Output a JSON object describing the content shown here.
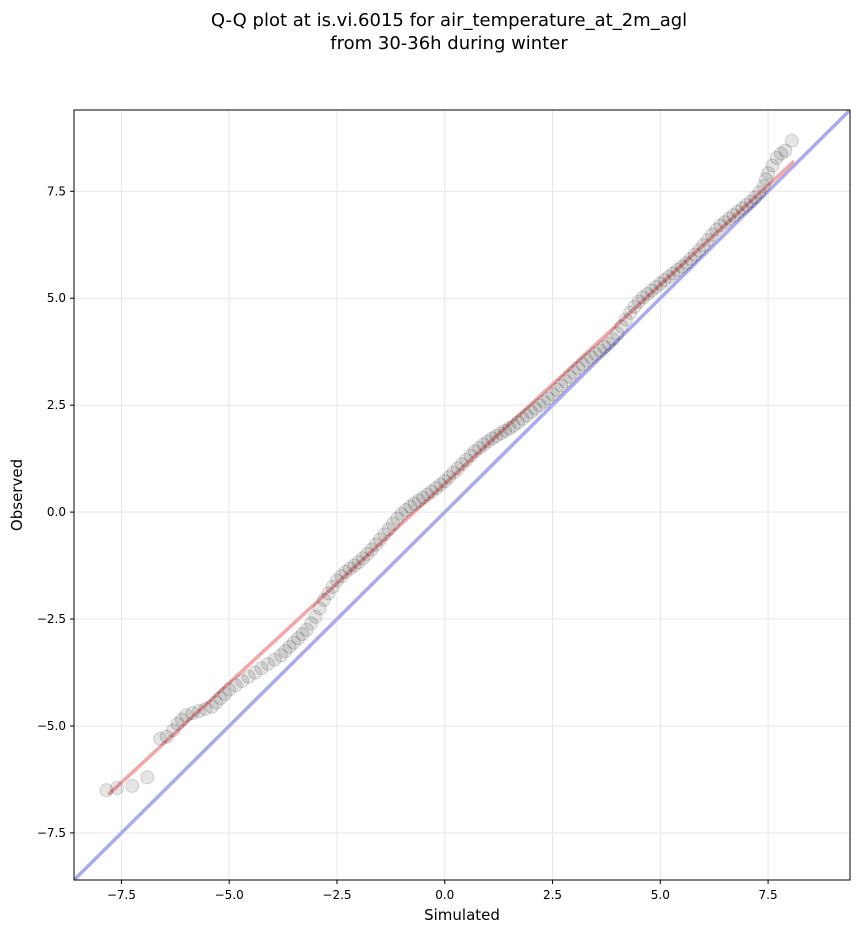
{
  "chart_data": {
    "type": "scatter",
    "title_lines": [
      "Q-Q plot at is.vi.6015 for air_temperature_at_2m_agl",
      "from 30-36h during winter"
    ],
    "xlabel": "Simulated",
    "ylabel": "Observed",
    "xlim": [
      -8.6,
      9.4
    ],
    "ylim": [
      -8.6,
      9.4
    ],
    "xticks": [
      -7.5,
      -5.0,
      -2.5,
      0.0,
      2.5,
      5.0,
      7.5
    ],
    "yticks": [
      -7.5,
      -5.0,
      -2.5,
      0.0,
      2.5,
      5.0,
      7.5
    ],
    "xtick_labels": [
      "−7.5",
      "−5.0",
      "−2.5",
      "0.0",
      "2.5",
      "5.0",
      "7.5"
    ],
    "ytick_labels": [
      "−7.5",
      "−5.0",
      "−2.5",
      "0.0",
      "2.5",
      "5.0",
      "7.5"
    ],
    "grid": true,
    "reference_line": {
      "points": [
        [
          -8.6,
          -8.6
        ],
        [
          9.4,
          9.4
        ]
      ],
      "color": "#aaaaee"
    },
    "fit_line": {
      "points": [
        [
          -7.8,
          -6.6
        ],
        [
          8.1,
          8.2
        ]
      ],
      "color": "#f4a6a6"
    },
    "points": [
      [
        -7.85,
        -6.5
      ],
      [
        -7.6,
        -6.45
      ],
      [
        -7.25,
        -6.4
      ],
      [
        -6.9,
        -6.2
      ],
      [
        -6.6,
        -5.3
      ],
      [
        -6.45,
        -5.25
      ],
      [
        -6.3,
        -5.1
      ],
      [
        -6.2,
        -4.95
      ],
      [
        -6.1,
        -4.85
      ],
      [
        -6.0,
        -4.75
      ],
      [
        -5.85,
        -4.7
      ],
      [
        -5.7,
        -4.65
      ],
      [
        -5.55,
        -4.6
      ],
      [
        -5.4,
        -4.55
      ],
      [
        -5.3,
        -4.45
      ],
      [
        -5.2,
        -4.35
      ],
      [
        -5.1,
        -4.25
      ],
      [
        -5.0,
        -4.15
      ],
      [
        -4.85,
        -4.05
      ],
      [
        -4.7,
        -3.95
      ],
      [
        -4.55,
        -3.85
      ],
      [
        -4.4,
        -3.75
      ],
      [
        -4.25,
        -3.65
      ],
      [
        -4.1,
        -3.55
      ],
      [
        -3.95,
        -3.45
      ],
      [
        -3.8,
        -3.35
      ],
      [
        -3.7,
        -3.25
      ],
      [
        -3.6,
        -3.15
      ],
      [
        -3.5,
        -3.05
      ],
      [
        -3.4,
        -2.95
      ],
      [
        -3.3,
        -2.85
      ],
      [
        -3.2,
        -2.75
      ],
      [
        -3.1,
        -2.6
      ],
      [
        -3.0,
        -2.45
      ],
      [
        -2.9,
        -2.25
      ],
      [
        -2.8,
        -2.05
      ],
      [
        -2.7,
        -1.9
      ],
      [
        -2.6,
        -1.75
      ],
      [
        -2.5,
        -1.6
      ],
      [
        -2.4,
        -1.5
      ],
      [
        -2.3,
        -1.4
      ],
      [
        -2.2,
        -1.32
      ],
      [
        -2.1,
        -1.25
      ],
      [
        -2.0,
        -1.17
      ],
      [
        -1.9,
        -1.08
      ],
      [
        -1.8,
        -0.98
      ],
      [
        -1.7,
        -0.88
      ],
      [
        -1.6,
        -0.76
      ],
      [
        -1.5,
        -0.64
      ],
      [
        -1.4,
        -0.52
      ],
      [
        -1.3,
        -0.4
      ],
      [
        -1.2,
        -0.27
      ],
      [
        -1.1,
        -0.15
      ],
      [
        -1.0,
        -0.04
      ],
      [
        -0.9,
        0.05
      ],
      [
        -0.8,
        0.13
      ],
      [
        -0.7,
        0.2
      ],
      [
        -0.6,
        0.27
      ],
      [
        -0.5,
        0.34
      ],
      [
        -0.4,
        0.41
      ],
      [
        -0.3,
        0.48
      ],
      [
        -0.2,
        0.56
      ],
      [
        -0.1,
        0.64
      ],
      [
        0.0,
        0.72
      ],
      [
        0.1,
        0.82
      ],
      [
        0.2,
        0.92
      ],
      [
        0.3,
        1.02
      ],
      [
        0.4,
        1.12
      ],
      [
        0.5,
        1.22
      ],
      [
        0.6,
        1.32
      ],
      [
        0.7,
        1.42
      ],
      [
        0.8,
        1.5
      ],
      [
        0.9,
        1.58
      ],
      [
        1.0,
        1.65
      ],
      [
        1.1,
        1.72
      ],
      [
        1.2,
        1.78
      ],
      [
        1.3,
        1.84
      ],
      [
        1.4,
        1.9
      ],
      [
        1.5,
        1.96
      ],
      [
        1.6,
        2.02
      ],
      [
        1.7,
        2.1
      ],
      [
        1.8,
        2.18
      ],
      [
        1.9,
        2.26
      ],
      [
        2.0,
        2.34
      ],
      [
        2.1,
        2.42
      ],
      [
        2.2,
        2.5
      ],
      [
        2.3,
        2.58
      ],
      [
        2.4,
        2.66
      ],
      [
        2.5,
        2.76
      ],
      [
        2.6,
        2.86
      ],
      [
        2.7,
        2.96
      ],
      [
        2.8,
        3.06
      ],
      [
        2.9,
        3.16
      ],
      [
        3.0,
        3.26
      ],
      [
        3.1,
        3.36
      ],
      [
        3.2,
        3.45
      ],
      [
        3.3,
        3.54
      ],
      [
        3.4,
        3.62
      ],
      [
        3.5,
        3.7
      ],
      [
        3.6,
        3.78
      ],
      [
        3.7,
        3.86
      ],
      [
        3.8,
        3.94
      ],
      [
        3.9,
        4.04
      ],
      [
        4.0,
        4.18
      ],
      [
        4.1,
        4.34
      ],
      [
        4.2,
        4.5
      ],
      [
        4.3,
        4.66
      ],
      [
        4.4,
        4.8
      ],
      [
        4.5,
        4.92
      ],
      [
        4.6,
        5.02
      ],
      [
        4.7,
        5.1
      ],
      [
        4.8,
        5.18
      ],
      [
        4.9,
        5.26
      ],
      [
        5.0,
        5.34
      ],
      [
        5.1,
        5.42
      ],
      [
        5.2,
        5.5
      ],
      [
        5.3,
        5.58
      ],
      [
        5.4,
        5.66
      ],
      [
        5.5,
        5.74
      ],
      [
        5.6,
        5.82
      ],
      [
        5.7,
        5.92
      ],
      [
        5.8,
        6.02
      ],
      [
        5.9,
        6.12
      ],
      [
        6.0,
        6.24
      ],
      [
        6.1,
        6.36
      ],
      [
        6.2,
        6.48
      ],
      [
        6.3,
        6.6
      ],
      [
        6.4,
        6.7
      ],
      [
        6.5,
        6.78
      ],
      [
        6.6,
        6.86
      ],
      [
        6.7,
        6.94
      ],
      [
        6.8,
        7.02
      ],
      [
        6.9,
        7.1
      ],
      [
        7.0,
        7.18
      ],
      [
        7.1,
        7.26
      ],
      [
        7.2,
        7.36
      ],
      [
        7.3,
        7.48
      ],
      [
        7.4,
        7.62
      ],
      [
        7.45,
        7.78
      ],
      [
        7.5,
        7.92
      ],
      [
        7.6,
        8.1
      ],
      [
        7.7,
        8.28
      ],
      [
        7.8,
        8.38
      ],
      [
        7.9,
        8.45
      ],
      [
        8.05,
        8.68
      ]
    ]
  }
}
